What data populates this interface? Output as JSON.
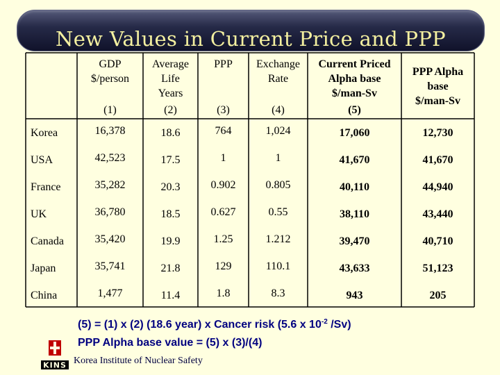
{
  "title": "New Values in Current Price and PPP",
  "table": {
    "headers": [
      {
        "lines": [
          "GDP",
          "$/person"
        ],
        "index": "(1)"
      },
      {
        "lines": [
          "Average",
          "Life",
          "Years"
        ],
        "index": "(2)"
      },
      {
        "lines": [
          "PPP"
        ],
        "index": "(3)"
      },
      {
        "lines": [
          "Exchange",
          "Rate"
        ],
        "index": "(4)"
      },
      {
        "lines": [
          "Current Priced",
          "Alpha base",
          "$/man-Sv"
        ],
        "index": "(5)"
      },
      {
        "lines": [
          "PPP Alpha",
          "base",
          "$/man-Sv"
        ],
        "index": ""
      }
    ],
    "rows": [
      {
        "country": "Korea",
        "values": [
          "16,378",
          "18.6",
          "764",
          "1,024",
          "17,060",
          "12,730"
        ]
      },
      {
        "country": "USA",
        "values": [
          "42,523",
          "17.5",
          "1",
          "1",
          "41,670",
          "41,670"
        ]
      },
      {
        "country": "France",
        "values": [
          "35,282",
          "20.3",
          "0.902",
          "0.805",
          "40,110",
          "44,940"
        ]
      },
      {
        "country": "UK",
        "values": [
          "36,780",
          "18.5",
          "0.627",
          "0.55",
          "38,110",
          "43,440"
        ]
      },
      {
        "country": "Canada",
        "values": [
          "35,420",
          "19.9",
          "1.25",
          "1.212",
          "39,470",
          "40,710"
        ]
      },
      {
        "country": "Japan",
        "values": [
          "35,741",
          "21.8",
          "129",
          "110.1",
          "43,633",
          "51,123"
        ]
      },
      {
        "country": "China",
        "values": [
          "1,477",
          "11.4",
          "1.8",
          "8.3",
          "943",
          "205"
        ]
      }
    ]
  },
  "formulas": {
    "line1_pre": "(5) = (1) x (2) (18.6 year) x Cancer risk (5.6 x 10",
    "line1_exp": "-2",
    "line1_post": " /Sv)",
    "line2": "PPP Alpha base value = (5) x (3)/(4)"
  },
  "footer": {
    "org": "Korea Institute of Nuclear Safety",
    "logo_text": "KINS"
  },
  "colors": {
    "background": "#ffffe0",
    "title_text": "#f4f0a0",
    "formula_text": "#000080",
    "logo_red": "#c00000"
  }
}
